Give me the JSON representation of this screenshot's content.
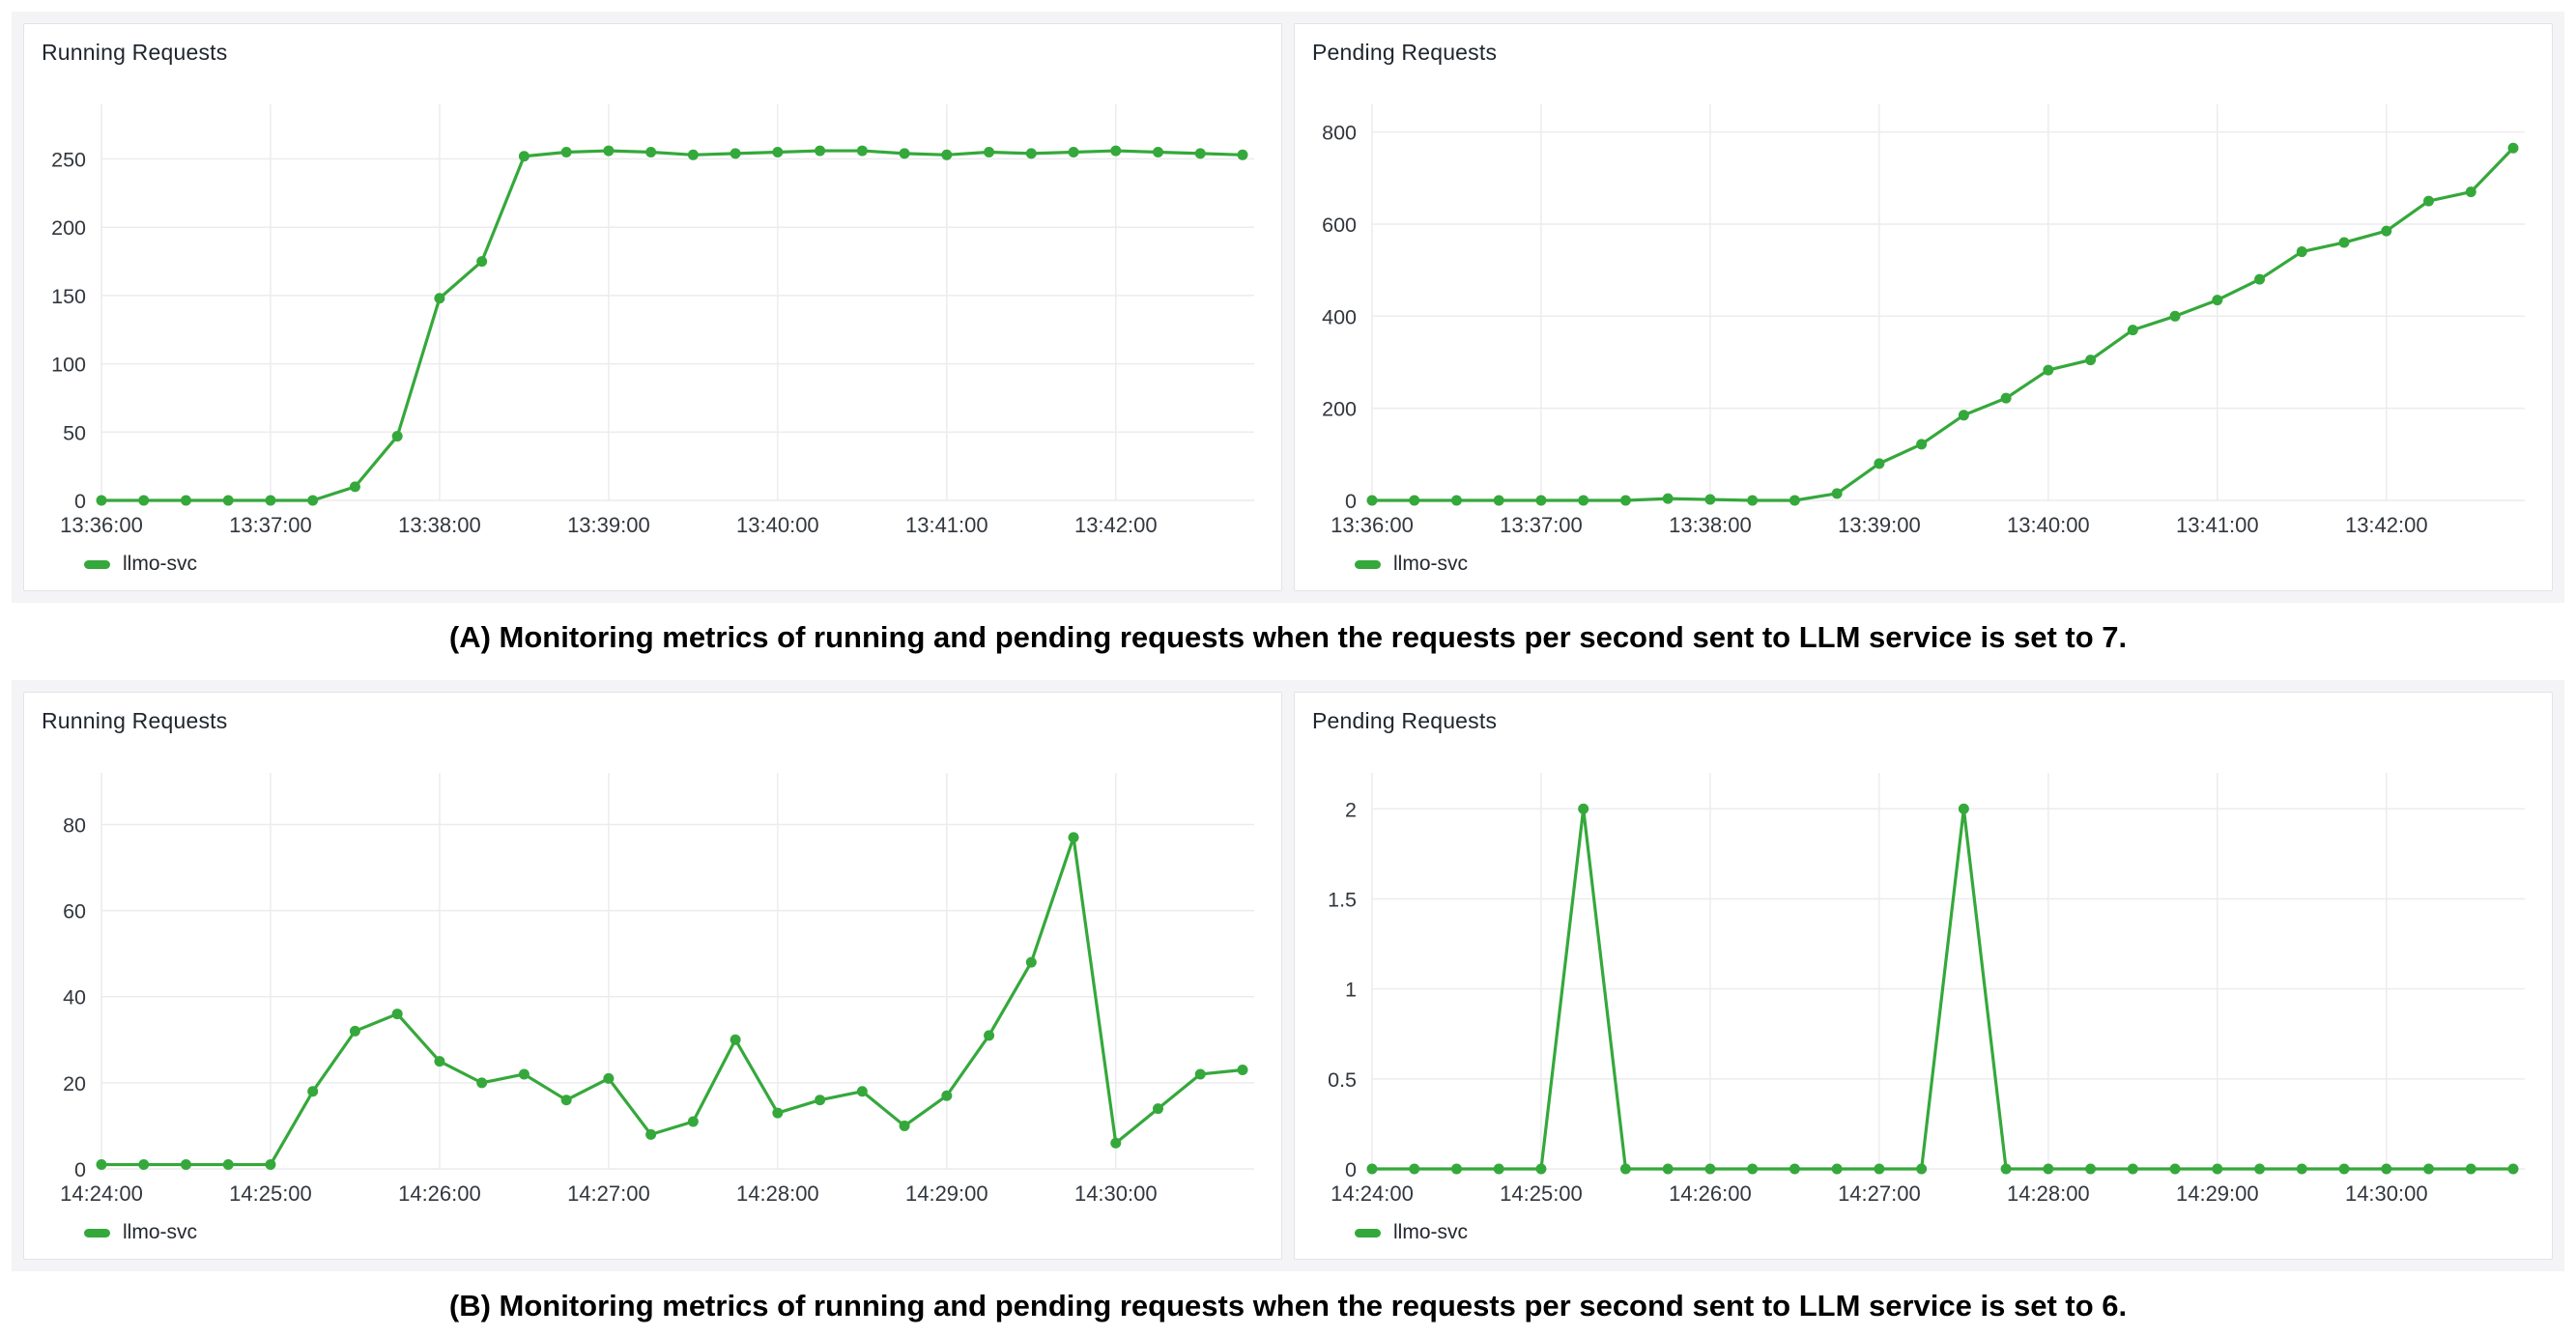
{
  "captions": {
    "a": "(A) Monitoring metrics of running and pending requests when the requests per second sent to LLM service is set to 7.",
    "b": "(B) Monitoring metrics of running and pending requests when the requests per second sent to LLM service is set to 6."
  },
  "theme": {
    "green": "#35A83B",
    "grid": "#ECECEF",
    "tick": "#32373D",
    "title": "#1F262D",
    "panel_border": "#E2E3E6",
    "wrapper_bg": "#F4F4F6"
  },
  "chart_data": [
    {
      "id": "running-requests-rps7",
      "type": "line",
      "title": "Running Requests",
      "legend_position": "bottom",
      "grid": true,
      "x": [
        "13:36:00",
        "13:36:15",
        "13:36:30",
        "13:36:45",
        "13:37:00",
        "13:37:15",
        "13:37:30",
        "13:37:45",
        "13:38:00",
        "13:38:15",
        "13:38:30",
        "13:38:45",
        "13:39:00",
        "13:39:15",
        "13:39:30",
        "13:39:45",
        "13:40:00",
        "13:40:15",
        "13:40:30",
        "13:40:45",
        "13:41:00",
        "13:41:15",
        "13:41:30",
        "13:41:45",
        "13:42:00",
        "13:42:15",
        "13:42:30",
        "13:42:45"
      ],
      "tick_every": 4,
      "yticks": [
        0,
        50,
        100,
        150,
        200,
        250
      ],
      "ytick_labels": [
        "0",
        "50",
        "100",
        "150",
        "200",
        "250"
      ],
      "ylim": [
        0,
        290
      ],
      "series": [
        {
          "name": "llmo-svc",
          "values": [
            0,
            0,
            0,
            0,
            0,
            0,
            10,
            47,
            148,
            175,
            252,
            255,
            256,
            255,
            253,
            254,
            255,
            256,
            256,
            254,
            253,
            255,
            254,
            255,
            256,
            255,
            254,
            253
          ]
        }
      ]
    },
    {
      "id": "pending-requests-rps7",
      "type": "line",
      "title": "Pending Requests",
      "legend_position": "bottom",
      "grid": true,
      "x": [
        "13:36:00",
        "13:36:15",
        "13:36:30",
        "13:36:45",
        "13:37:00",
        "13:37:15",
        "13:37:30",
        "13:37:45",
        "13:38:00",
        "13:38:15",
        "13:38:30",
        "13:38:45",
        "13:39:00",
        "13:39:15",
        "13:39:30",
        "13:39:45",
        "13:40:00",
        "13:40:15",
        "13:40:30",
        "13:40:45",
        "13:41:00",
        "13:41:15",
        "13:41:30",
        "13:41:45",
        "13:42:00",
        "13:42:15",
        "13:42:30",
        "13:42:45"
      ],
      "tick_every": 4,
      "yticks": [
        0,
        200,
        400,
        600,
        800
      ],
      "ytick_labels": [
        "0",
        "200",
        "400",
        "600",
        "800"
      ],
      "ylim": [
        0,
        860
      ],
      "series": [
        {
          "name": "llmo-svc",
          "values": [
            0,
            0,
            0,
            0,
            0,
            0,
            0,
            4,
            2,
            0,
            0,
            15,
            80,
            122,
            185,
            222,
            283,
            305,
            370,
            400,
            435,
            480,
            540,
            560,
            585,
            650,
            670,
            765
          ]
        }
      ]
    },
    {
      "id": "running-requests-rps6",
      "type": "line",
      "title": "Running Requests",
      "legend_position": "bottom",
      "grid": true,
      "x": [
        "14:24:00",
        "14:24:15",
        "14:24:30",
        "14:24:45",
        "14:25:00",
        "14:25:15",
        "14:25:30",
        "14:25:45",
        "14:26:00",
        "14:26:15",
        "14:26:30",
        "14:26:45",
        "14:27:00",
        "14:27:15",
        "14:27:30",
        "14:27:45",
        "14:28:00",
        "14:28:15",
        "14:28:30",
        "14:28:45",
        "14:29:00",
        "14:29:15",
        "14:29:30",
        "14:29:45",
        "14:30:00",
        "14:30:15",
        "14:30:30",
        "14:30:45"
      ],
      "tick_every": 4,
      "yticks": [
        0,
        20,
        40,
        60,
        80
      ],
      "ytick_labels": [
        "0",
        "20",
        "40",
        "60",
        "80"
      ],
      "ylim": [
        0,
        92
      ],
      "series": [
        {
          "name": "llmo-svc",
          "values": [
            1,
            1,
            1,
            1,
            1,
            18,
            32,
            36,
            25,
            20,
            22,
            16,
            21,
            8,
            11,
            30,
            13,
            16,
            18,
            10,
            17,
            31,
            48,
            77,
            6,
            14,
            22,
            23
          ]
        }
      ]
    },
    {
      "id": "pending-requests-rps6",
      "type": "line",
      "title": "Pending Requests",
      "legend_position": "bottom",
      "grid": true,
      "x": [
        "14:24:00",
        "14:24:15",
        "14:24:30",
        "14:24:45",
        "14:25:00",
        "14:25:15",
        "14:25:30",
        "14:25:45",
        "14:26:00",
        "14:26:15",
        "14:26:30",
        "14:26:45",
        "14:27:00",
        "14:27:15",
        "14:27:30",
        "14:27:45",
        "14:28:00",
        "14:28:15",
        "14:28:30",
        "14:28:45",
        "14:29:00",
        "14:29:15",
        "14:29:30",
        "14:29:45",
        "14:30:00",
        "14:30:15",
        "14:30:30",
        "14:30:45"
      ],
      "tick_every": 4,
      "yticks": [
        0,
        0.5,
        1,
        1.5,
        2
      ],
      "ytick_labels": [
        "0",
        "0.5",
        "1",
        "1.5",
        "2"
      ],
      "ylim": [
        0,
        2.2
      ],
      "series": [
        {
          "name": "llmo-svc",
          "values": [
            0,
            0,
            0,
            0,
            0,
            2,
            0,
            0,
            0,
            0,
            0,
            0,
            0,
            0,
            2,
            0,
            0,
            0,
            0,
            0,
            0,
            0,
            0,
            0,
            0,
            0,
            0,
            0
          ]
        }
      ]
    }
  ]
}
